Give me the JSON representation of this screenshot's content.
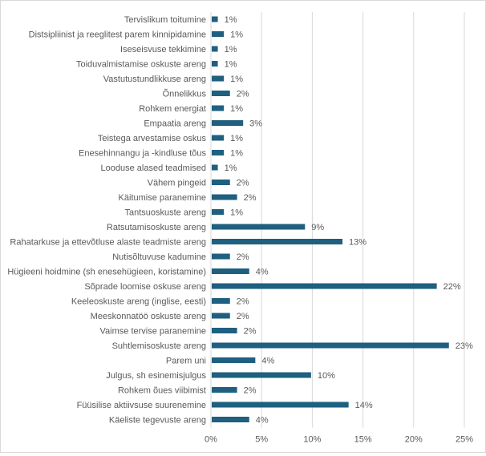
{
  "chart_data": {
    "type": "bar",
    "orientation": "horizontal",
    "title": "",
    "xlabel": "",
    "ylabel": "",
    "xlim": [
      0,
      25
    ],
    "x_ticks": [
      "0%",
      "5%",
      "10%",
      "15%",
      "20%",
      "25%"
    ],
    "grid": true,
    "legend": "none",
    "bar_color": "#1f5f7f",
    "categories": [
      "Tervislikum toitumine",
      "Distsipliinist ja reeglitest parem kinnipidamine",
      "Iseseisvuse tekkimine",
      "Toiduvalmistamise oskuste areng",
      "Vastutustundlikkuse areng",
      "Õnnelikkus",
      "Rohkem energiat",
      "Empaatia areng",
      "Teistega arvestamise oskus",
      "Enesehinnangu ja  -kindluse tõus",
      "Looduse alased teadmised",
      "Vähem pingeid",
      "Käitumise paranemine",
      "Tantsuoskuste areng",
      "Ratsutamisoskuste areng",
      "Rahatarkuse ja ettevõtluse alaste teadmiste areng",
      "Nutisõltuvuse kadumine",
      "Hügieeni hoidmine (sh enesehügieen, koristamine)",
      "Sõprade loomise oskuse areng",
      "Keeleoskuste areng (inglise, eesti)",
      "Meeskonnatöö oskuste areng",
      "Vaimse tervise paranemine",
      "Suhtlemisoskuste areng",
      "Parem uni",
      "Julgus, sh esinemisjulgus",
      "Rohkem õues viibimist",
      "Füüsilise aktiivsuse suurenemine",
      "Käeliste tegevuste areng"
    ],
    "values": [
      0.6,
      1.2,
      0.6,
      0.6,
      1.2,
      1.8,
      1.2,
      3.1,
      1.2,
      1.2,
      0.6,
      1.8,
      2.5,
      1.2,
      9.2,
      12.9,
      1.8,
      3.7,
      22.2,
      1.8,
      1.8,
      2.5,
      23.4,
      4.3,
      9.8,
      2.5,
      13.5,
      3.7
    ],
    "data_labels": [
      "1%",
      "1%",
      "1%",
      "1%",
      "1%",
      "2%",
      "1%",
      "3%",
      "1%",
      "1%",
      "1%",
      "2%",
      "2%",
      "1%",
      "9%",
      "13%",
      "2%",
      "4%",
      "22%",
      "2%",
      "2%",
      "2%",
      "23%",
      "4%",
      "10%",
      "2%",
      "14%",
      "4%"
    ]
  }
}
